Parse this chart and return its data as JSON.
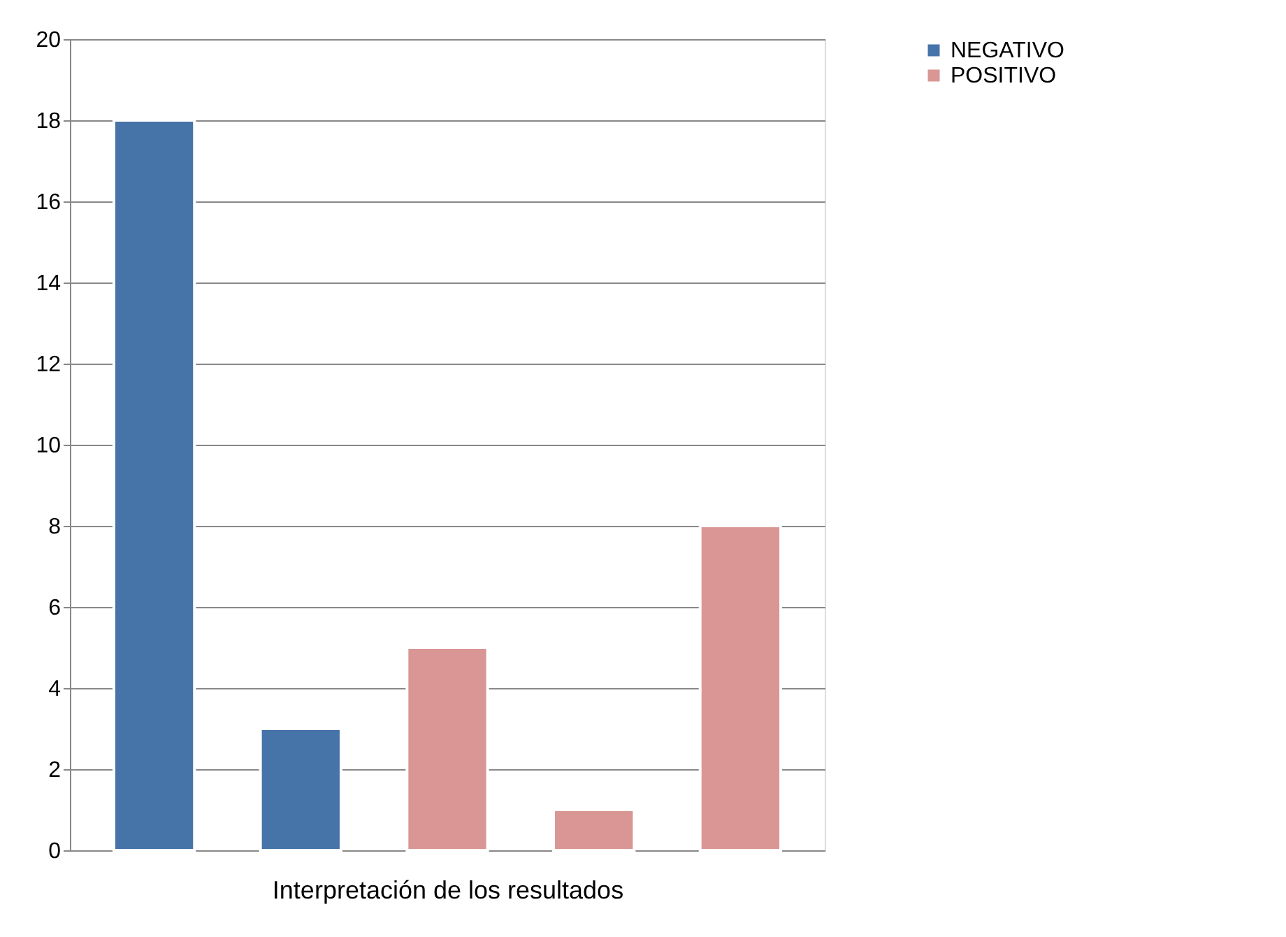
{
  "chart_data": {
    "type": "bar",
    "xlabel": "Interpretación de los resultados",
    "categories": [
      null,
      null,
      null,
      null,
      null
    ],
    "series": [
      {
        "name": "NEGATIVO",
        "color": "#4674a9",
        "values": [
          18,
          3,
          null,
          null,
          null
        ]
      },
      {
        "name": "POSITIVO",
        "color": "#d99694",
        "values": [
          null,
          null,
          5,
          1,
          8
        ]
      }
    ],
    "ylim": [
      0,
      20
    ],
    "yticks": [
      0,
      2,
      4,
      6,
      8,
      10,
      12,
      14,
      16,
      18,
      20
    ],
    "grid": "y",
    "legend": "right",
    "tick_labels": "y"
  }
}
